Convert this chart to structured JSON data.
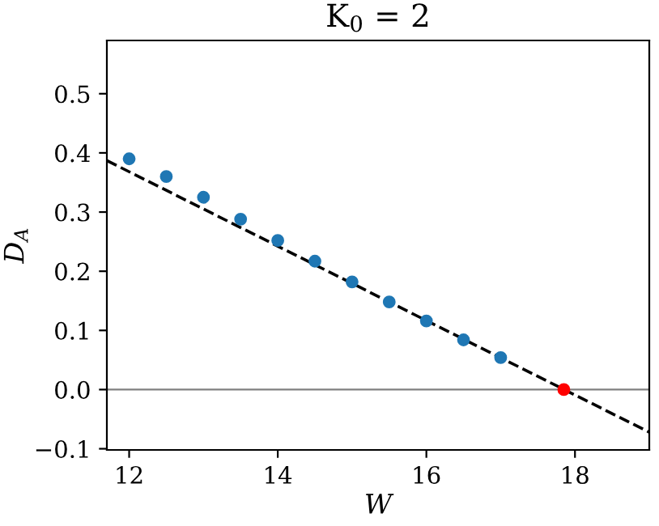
{
  "chart_data": {
    "type": "scatter",
    "title": "K$_{0}$ = 2",
    "xlabel": "W",
    "ylabel": "D$_{A}$",
    "xlim": [
      11.7,
      19.0
    ],
    "ylim": [
      -0.102,
      0.59
    ],
    "xticks": [
      12,
      14,
      16,
      18
    ],
    "yticks": [
      {
        "value": -0.1,
        "label": "−0.1"
      },
      {
        "value": 0.0,
        "label": "0.0"
      },
      {
        "value": 0.1,
        "label": "0.1"
      },
      {
        "value": 0.2,
        "label": "0.2"
      },
      {
        "value": 0.3,
        "label": "0.3"
      },
      {
        "value": 0.4,
        "label": "0.4"
      },
      {
        "value": 0.5,
        "label": "0.5"
      }
    ],
    "series": [
      {
        "type": "line",
        "color": "#000000",
        "line_style": "dashed",
        "x": [
          11.7,
          19.0
        ],
        "values": [
          0.387,
          -0.072
        ]
      },
      {
        "color": "#1f77b4",
        "marker": "circle",
        "x": [
          12,
          12.5,
          13,
          13.5,
          14,
          14.5,
          15,
          15.5,
          16,
          16.5,
          17
        ],
        "values": [
          0.39,
          0.36,
          0.325,
          0.288,
          0.252,
          0.217,
          0.182,
          0.148,
          0.116,
          0.084,
          0.054
        ]
      },
      {
        "color": "#ff0000",
        "marker": "circle",
        "x": [
          17.85
        ],
        "values": [
          0.0
        ]
      }
    ],
    "ref_lines": [
      {
        "axis": "y",
        "value": 0.0,
        "color": "#808080"
      }
    ],
    "grid": false,
    "legend": false
  }
}
